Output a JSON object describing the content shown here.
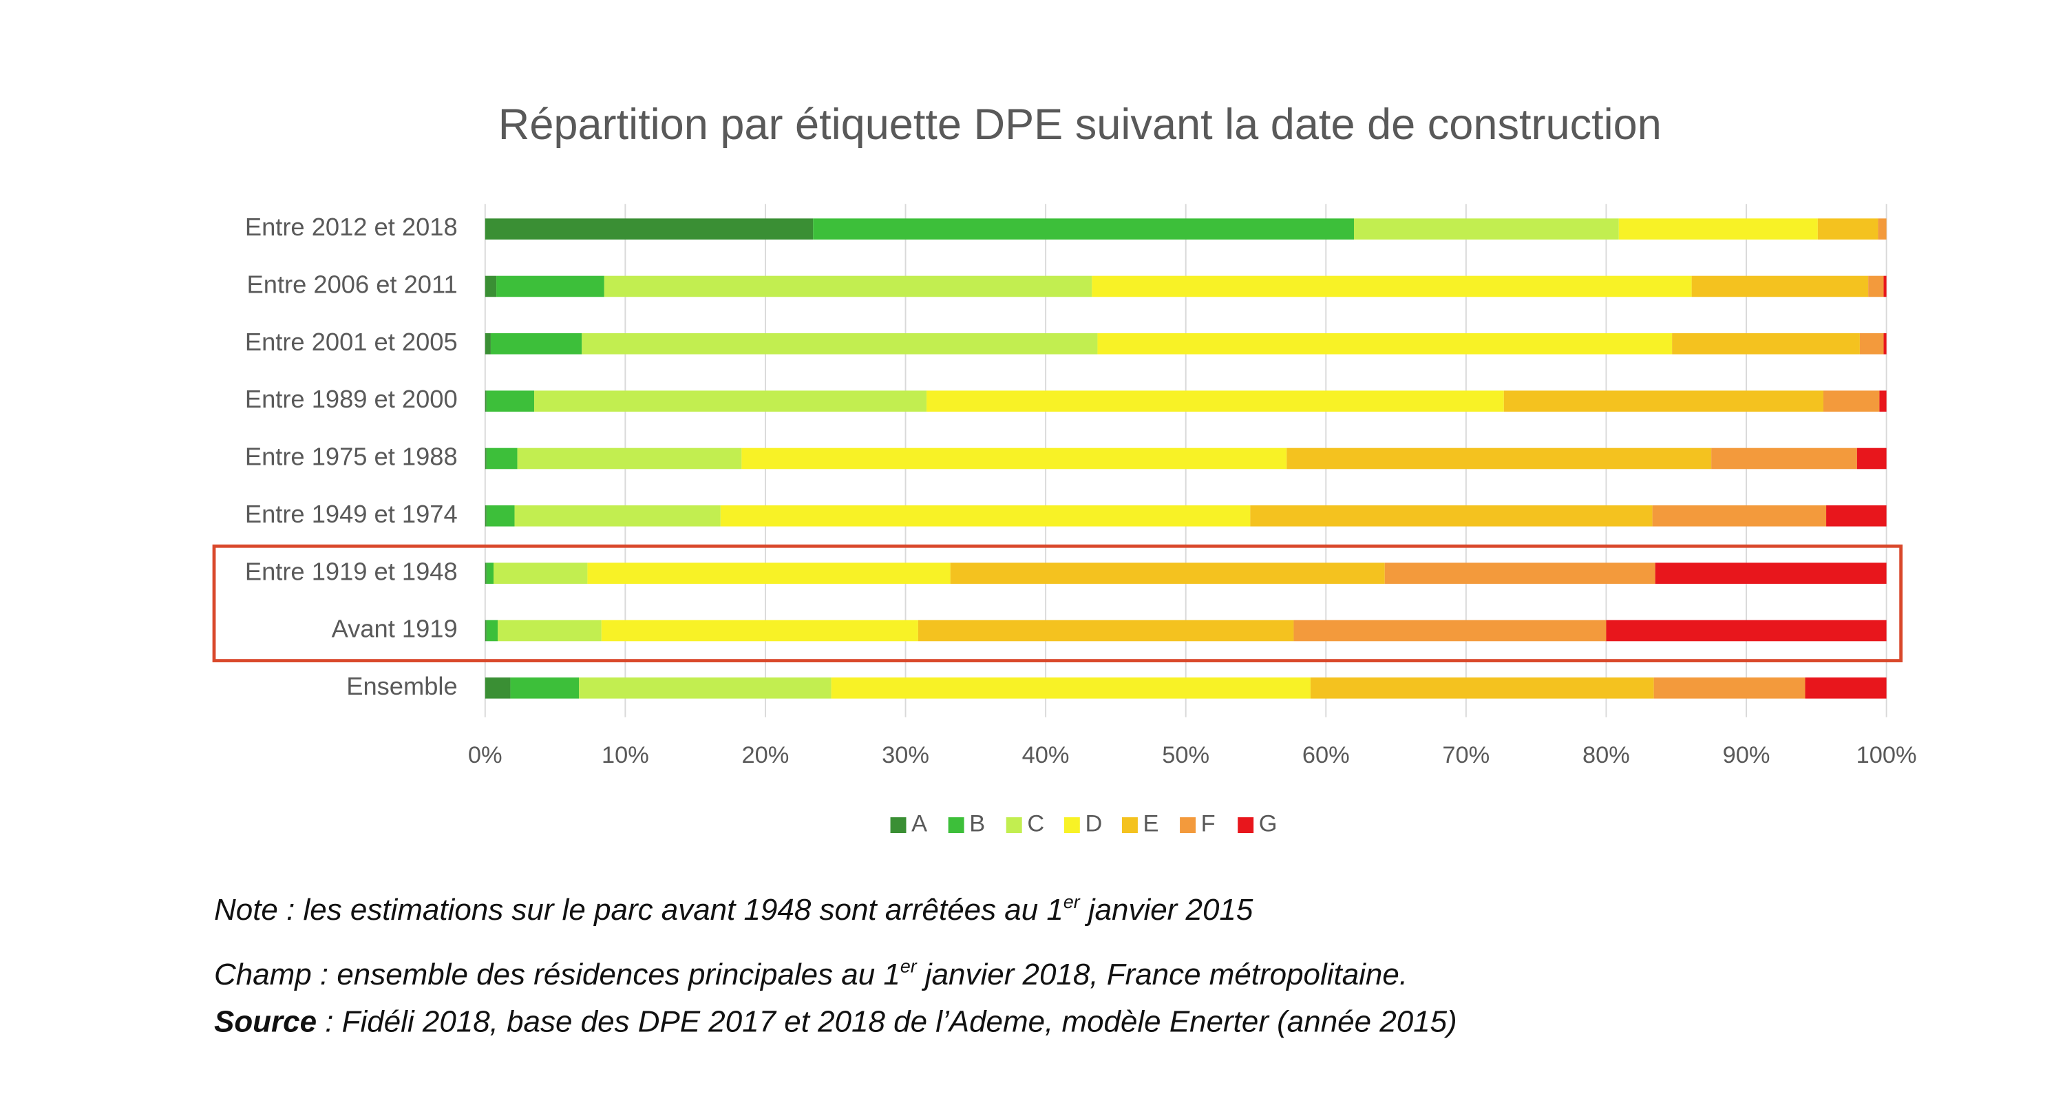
{
  "chart_data": {
    "type": "bar",
    "stacked": true,
    "orientation": "horizontal",
    "title": "Répartition par étiquette DPE suivant la date de construction",
    "categories": [
      "Entre 2012 et 2018",
      "Entre 2006 et 2011",
      "Entre 2001 et 2005",
      "Entre 1989 et 2000",
      "Entre 1975 et 1988",
      "Entre 1949 et 1974",
      "Entre 1919 et 1948",
      "Avant 1919",
      "Ensemble"
    ],
    "series": [
      {
        "name": "A",
        "color": "#3a8f34",
        "values": [
          23.4,
          0.8,
          0.4,
          0.1,
          0.1,
          0.1,
          0.1,
          0.1,
          1.8
        ]
      },
      {
        "name": "B",
        "color": "#3dbf3a",
        "values": [
          38.6,
          7.7,
          6.5,
          3.4,
          2.2,
          2.0,
          0.5,
          0.8,
          4.9
        ]
      },
      {
        "name": "C",
        "color": "#c2ee50",
        "values": [
          18.9,
          34.8,
          36.8,
          28.0,
          16.0,
          14.7,
          6.7,
          7.4,
          18.0
        ]
      },
      {
        "name": "D",
        "color": "#f8f226",
        "values": [
          14.2,
          42.8,
          41.0,
          41.2,
          38.9,
          37.8,
          25.9,
          22.6,
          34.2
        ]
      },
      {
        "name": "E",
        "color": "#f4c21f",
        "values": [
          4.3,
          12.6,
          13.4,
          22.8,
          30.3,
          28.7,
          31.0,
          26.8,
          24.5
        ]
      },
      {
        "name": "F",
        "color": "#f39a3c",
        "values": [
          0.6,
          1.1,
          1.7,
          4.0,
          10.4,
          12.4,
          19.3,
          22.3,
          10.8
        ]
      },
      {
        "name": "G",
        "color": "#e8161c",
        "values": [
          0,
          0.2,
          0.2,
          0.5,
          2.1,
          4.3,
          16.5,
          20.0,
          5.8
        ]
      }
    ],
    "xlim": [
      0,
      100
    ],
    "xticks": [
      {
        "value": 0,
        "label": "0%"
      },
      {
        "value": 10,
        "label": "10%"
      },
      {
        "value": 20,
        "label": "20%"
      },
      {
        "value": 30,
        "label": "30%"
      },
      {
        "value": 40,
        "label": "40%"
      },
      {
        "value": 50,
        "label": "50%"
      },
      {
        "value": 60,
        "label": "60%"
      },
      {
        "value": 70,
        "label": "70%"
      },
      {
        "value": 80,
        "label": "80%"
      },
      {
        "value": 90,
        "label": "90%"
      },
      {
        "value": 100,
        "label": "100%"
      }
    ],
    "grid": true,
    "legend": "bottom"
  },
  "notes": {
    "note": {
      "before": "Note : les estimations sur le parc avant 1948 sont arrêtées au 1",
      "sup": "er",
      "after": " janvier 2015"
    },
    "champ": {
      "before": "Champ : ensemble des résidences principales au 1",
      "sup": "er",
      "after": " janvier 2018, France métropolitaine."
    },
    "source": {
      "bold": "Source",
      "rest": " : Fidéli 2018, base des DPE 2017 et 2018 de l’Ademe, modèle Enerter (année 2015)"
    }
  }
}
